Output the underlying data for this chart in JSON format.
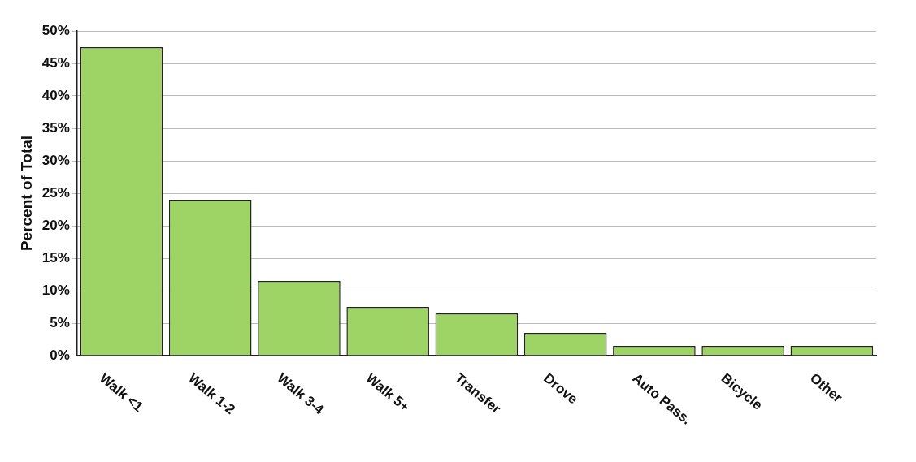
{
  "chart_data": {
    "type": "bar",
    "ylabel": "Percent of Total",
    "categories": [
      "Walk <1",
      "Walk 1-2",
      "Walk 3-4",
      "Walk 5+",
      "Transfer",
      "Drove",
      "Auto Pass.",
      "Bicycle",
      "Other"
    ],
    "values": [
      47.5,
      24,
      11.5,
      7.5,
      6.5,
      3.5,
      1.5,
      1.5,
      1.5
    ],
    "color": "#9ed466",
    "ylim": [
      0,
      50
    ],
    "yticks": [
      {
        "value": 0,
        "label": "0%"
      },
      {
        "value": 5,
        "label": "5%"
      },
      {
        "value": 10,
        "label": "10%"
      },
      {
        "value": 15,
        "label": "15%"
      },
      {
        "value": 20,
        "label": "20%"
      },
      {
        "value": 25,
        "label": "25%"
      },
      {
        "value": 30,
        "label": "30%"
      },
      {
        "value": 35,
        "label": "35%"
      },
      {
        "value": 40,
        "label": "40%"
      },
      {
        "value": 45,
        "label": "45%"
      },
      {
        "value": 50,
        "label": "50%"
      }
    ],
    "grid": "y",
    "legend": false
  }
}
